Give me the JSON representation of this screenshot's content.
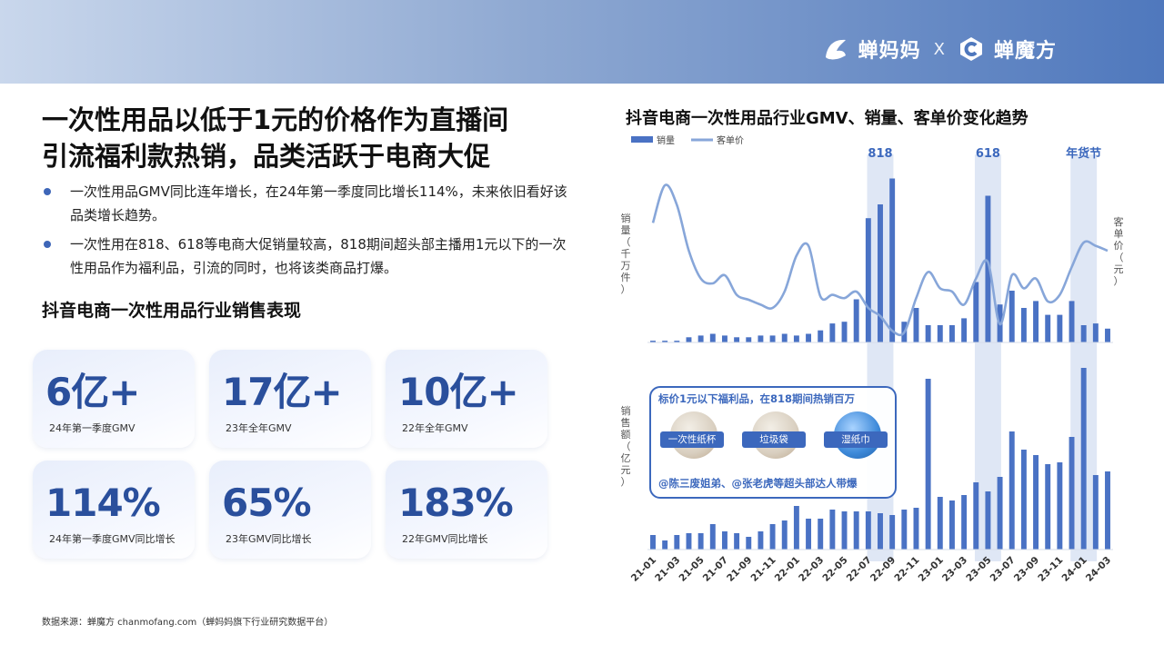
{
  "brand": {
    "left": "蝉妈妈",
    "sep": "X",
    "right": "蝉魔方"
  },
  "headline": {
    "line1": "一次性用品以低于1元的价格作为直播间",
    "line2": "引流福利款热销，品类活跃于电商大促"
  },
  "bullets": [
    "一次性用品GMV同比连年增长，在24年第一季度同比增长114%，未来依旧看好该品类增长趋势。",
    "一次性用在818、618等电商大促销量较高，818期间超头部主播用1元以下的一次性用品作为福利品，引流的同时，也将该类商品打爆。"
  ],
  "section_title": "抖音电商一次性用品行业销售表现",
  "kpis": [
    {
      "value": "6亿+",
      "label": "24年第一季度GMV"
    },
    {
      "value": "17亿+",
      "label": "23年全年GMV"
    },
    {
      "value": "10亿+",
      "label": "22年全年GMV"
    },
    {
      "value": "114%",
      "label": "24年第一季度GMV同比增长"
    },
    {
      "value": "65%",
      "label": "23年GMV同比增长"
    },
    {
      "value": "183%",
      "label": "22年GMV同比增长"
    }
  ],
  "footnote": "数据来源：蝉魔方 chanmofang.com（蝉妈妈旗下行业研究数据平台）",
  "callout": {
    "title": "标价1元以下福利品，在818期间热销百万",
    "items": [
      "一次性纸杯",
      "垃圾袋",
      "湿纸巾"
    ],
    "foot": "@陈三废姐弟、@张老虎等超头部达人带爆"
  },
  "colors": {
    "accent": "#3c68bd",
    "bar": "#4a72c4",
    "line": "#87a6d9",
    "highlight": "#dfe7f5"
  },
  "chart_data": {
    "type": "bar",
    "title": "抖音电商一次性用品行业GMV、销量、客单价变化趋势",
    "legend": [
      "销量",
      "客单价"
    ],
    "highlights": [
      "818",
      "618",
      "年货节"
    ],
    "x": [
      "21-01",
      "21-02",
      "21-03",
      "21-04",
      "21-05",
      "21-06",
      "21-07",
      "21-08",
      "21-09",
      "21-10",
      "21-11",
      "21-12",
      "22-01",
      "22-02",
      "22-03",
      "22-04",
      "22-05",
      "22-06",
      "22-07",
      "22-08",
      "22-09",
      "22-10",
      "22-11",
      "22-12",
      "23-01",
      "23-02",
      "23-03",
      "23-04",
      "23-05",
      "23-06",
      "23-07",
      "23-08",
      "23-09",
      "23-10",
      "23-11",
      "23-12",
      "24-01",
      "24-02",
      "24-03"
    ],
    "x_tick_labels": [
      "21-01",
      "21-03",
      "21-05",
      "21-07",
      "21-09",
      "21-11",
      "22-01",
      "22-03",
      "22-05",
      "22-07",
      "22-09",
      "22-11",
      "23-01",
      "23-03",
      "23-05",
      "23-07",
      "23-09",
      "23-11",
      "24-01",
      "24-03"
    ],
    "top_panel": {
      "left_label": "销量（千万件）",
      "right_label": "客单价（元）",
      "sales_volume": [
        1,
        1,
        1,
        3,
        4,
        5,
        4,
        3,
        3,
        4,
        4,
        5,
        4,
        5,
        7,
        11,
        12,
        25,
        72,
        80,
        95,
        12,
        20,
        10,
        10,
        10,
        14,
        35,
        85,
        22,
        30,
        20,
        24,
        16,
        16,
        24,
        10,
        11,
        8
      ],
      "unit_price": [
        72,
        95,
        83,
        55,
        38,
        35,
        40,
        28,
        25,
        22,
        20,
        30,
        52,
        58,
        27,
        28,
        26,
        30,
        20,
        15,
        6,
        5,
        26,
        42,
        32,
        30,
        22,
        38,
        48,
        10,
        40,
        32,
        38,
        24,
        28,
        45,
        60,
        58,
        55
      ]
    },
    "bottom_panel": {
      "left_label": "销售额（亿元）",
      "gmv": [
        8,
        5,
        8,
        9,
        9,
        14,
        10,
        9,
        7,
        10,
        14,
        16,
        24,
        17,
        17,
        22,
        21,
        21,
        21,
        20,
        19,
        22,
        23,
        94,
        29,
        27,
        30,
        37,
        32,
        40,
        65,
        55,
        52,
        47,
        48,
        62,
        100,
        41,
        43
      ]
    }
  }
}
